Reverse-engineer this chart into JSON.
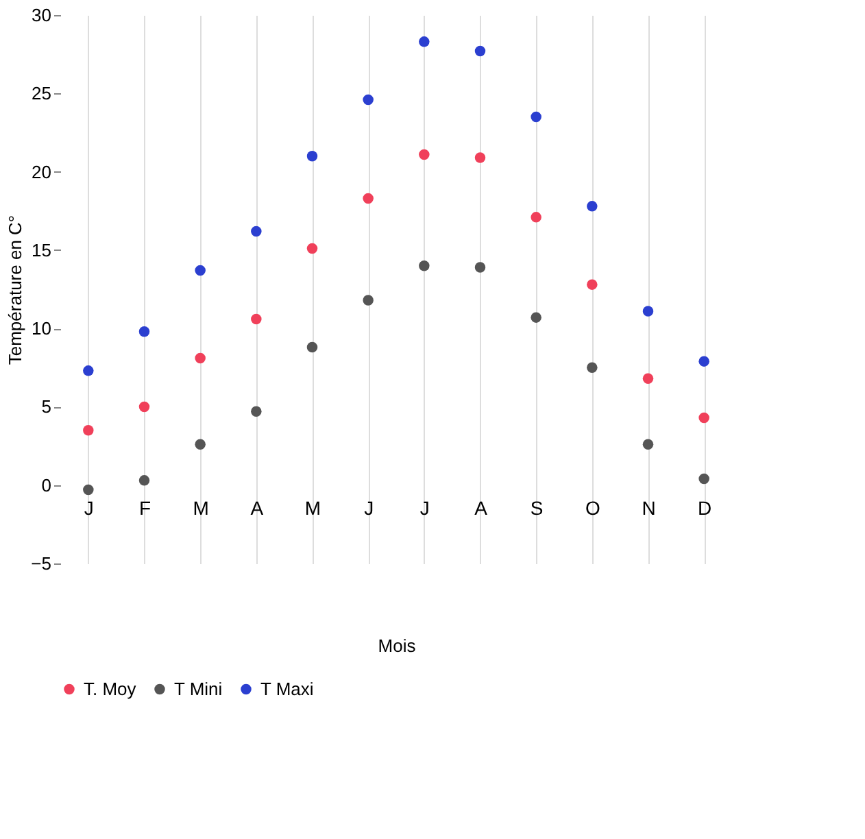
{
  "chart_data": {
    "type": "scatter",
    "xlabel": "Mois",
    "ylabel": "Température en C°",
    "categories": [
      "J",
      "F",
      "M",
      "A",
      "M",
      "J",
      "J",
      "A",
      "S",
      "O",
      "N",
      "D"
    ],
    "series": [
      {
        "name": "T. Moy",
        "color": "#f0405a",
        "values": [
          3.5,
          5,
          8.1,
          10.6,
          15.1,
          18.3,
          21.1,
          20.9,
          17.1,
          12.8,
          6.8,
          4.3
        ]
      },
      {
        "name": "T Mini",
        "color": "#555555",
        "values": [
          -0.3,
          0.3,
          2.6,
          4.7,
          8.8,
          11.8,
          14,
          13.9,
          10.7,
          7.5,
          2.6,
          0.4
        ]
      },
      {
        "name": "T Maxi",
        "color": "#2b3fd0",
        "values": [
          7.3,
          9.8,
          13.7,
          16.2,
          21,
          24.6,
          28.3,
          27.7,
          23.5,
          17.8,
          11.1,
          7.9
        ]
      }
    ],
    "ylim": [
      -5,
      30
    ],
    "yticks": [
      -5,
      0,
      5,
      10,
      15,
      20,
      25,
      30
    ],
    "grid": "x",
    "legend": "bottom",
    "marker": "circle"
  }
}
